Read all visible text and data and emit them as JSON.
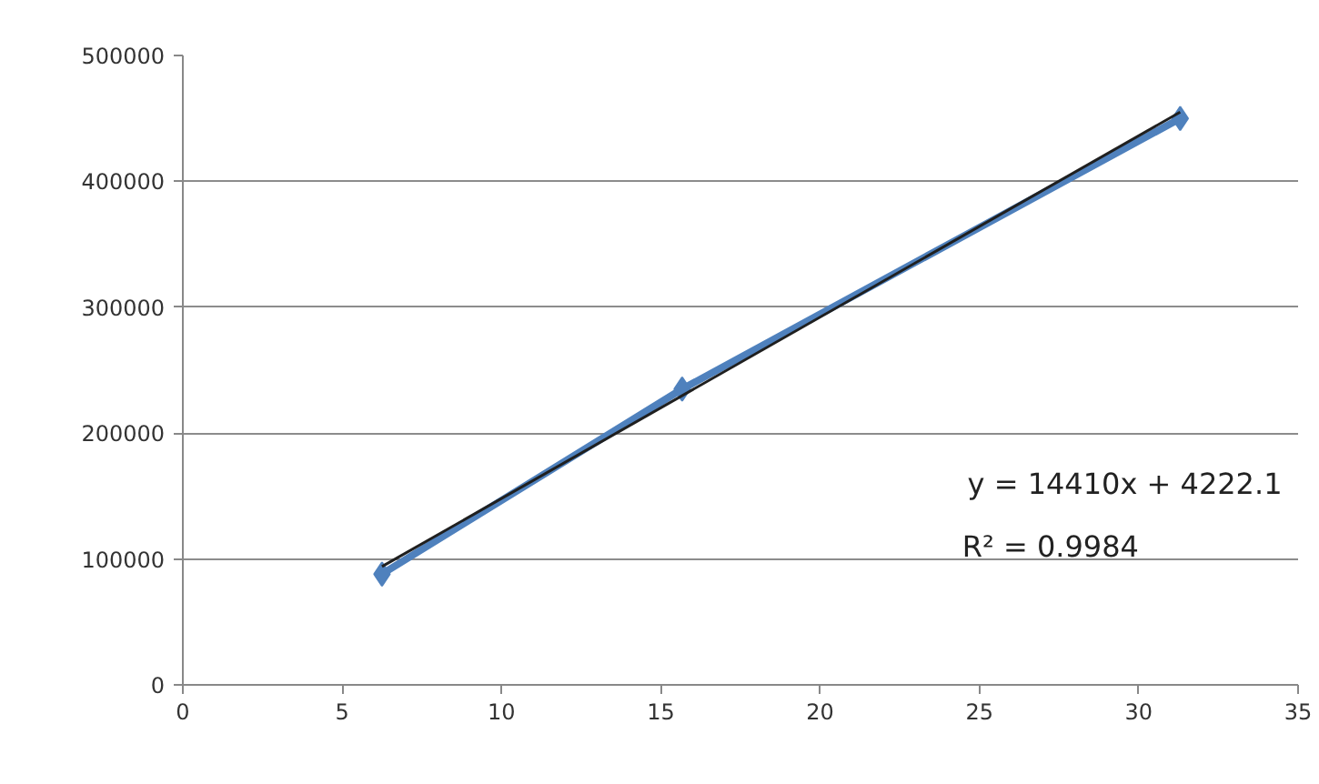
{
  "chart_data": {
    "type": "line",
    "xlim": [
      0,
      35
    ],
    "ylim": [
      0,
      500000
    ],
    "xticks": [
      0,
      5,
      10,
      15,
      20,
      25,
      30,
      35
    ],
    "yticks": [
      0,
      100000,
      200000,
      300000,
      400000,
      500000
    ],
    "grid": "y",
    "series": [
      {
        "color": "#4f81bd",
        "x": [
          6.25,
          15.67,
          31.3
        ],
        "values": [
          88000,
          235000,
          450000
        ],
        "marker": "diamond"
      },
      {
        "type": "line",
        "color": "#1f1f1f",
        "x": [
          6.25,
          31.3
        ],
        "values": [
          94000,
          455000
        ],
        "marker": "none"
      }
    ],
    "annotations": [
      "y = 14410x + 4222.1",
      "R² = 0.9984"
    ]
  }
}
